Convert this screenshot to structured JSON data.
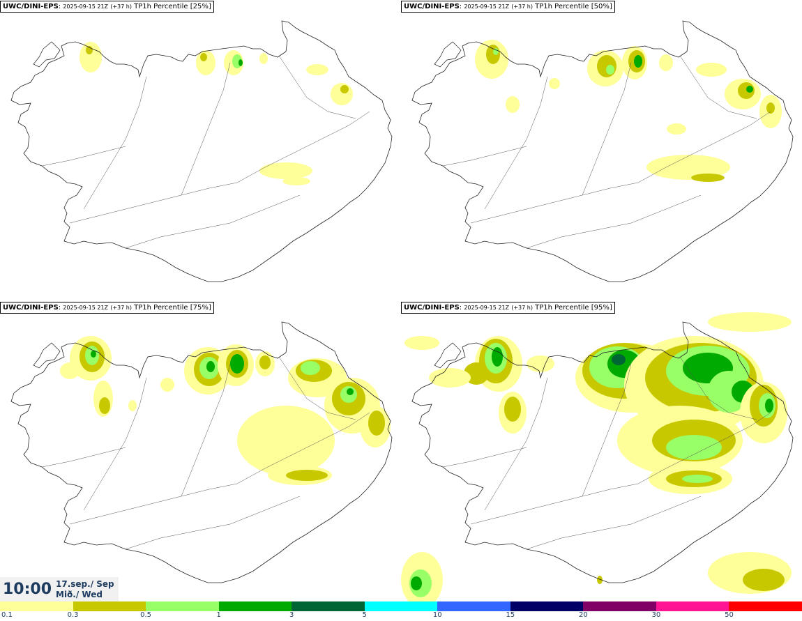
{
  "panels": [
    {
      "model": "UWC/DINI-EPS",
      "run": "2025-09-15 21Z",
      "lead": "(+37 h)",
      "field": "TP1h Percentile [25%]"
    },
    {
      "model": "UWC/DINI-EPS",
      "run": "2025-09-15 21Z",
      "lead": "(+37 h)",
      "field": "TP1h Percentile [50%]"
    },
    {
      "model": "UWC/DINI-EPS",
      "run": "2025-09-15 21Z",
      "lead": "(+37 h)",
      "field": "TP1h Percentile [75%]"
    },
    {
      "model": "UWC/DINI-EPS",
      "run": "2025-09-15 21Z",
      "lead": "(+37 h)",
      "field": "TP1h Percentile [95%]"
    }
  ],
  "time": {
    "clock": "10:00",
    "date": "17.sep./ Sep",
    "weekday": "Mið./ Wed"
  },
  "colorbar": {
    "colors": [
      "#ffff99",
      "#c8c800",
      "#99ff66",
      "#00aa00",
      "#006633",
      "#00ffff",
      "#3366ff",
      "#000066",
      "#800066",
      "#ff1493",
      "#ff0000"
    ],
    "labels": [
      "0.1",
      "0.3",
      "0.5",
      "1",
      "3",
      "5",
      "10",
      "15",
      "20",
      "30",
      "50"
    ]
  }
}
